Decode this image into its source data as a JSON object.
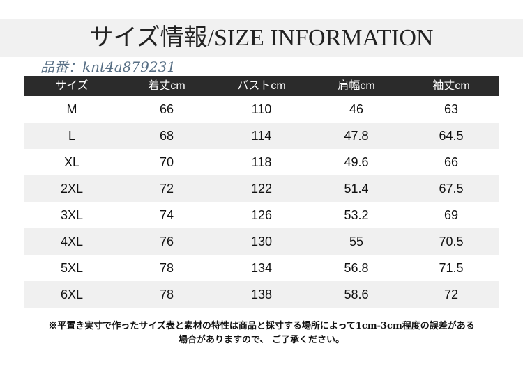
{
  "title": "サイズ情報/SIZE INFORMATION",
  "table": {
    "headers": [
      "サイズ",
      "着丈cm",
      "バストcm",
      "肩幅cm",
      "袖丈cm"
    ],
    "rows": [
      [
        "M",
        "66",
        "110",
        "46",
        "63"
      ],
      [
        "L",
        "68",
        "114",
        "47.8",
        "64.5"
      ],
      [
        "XL",
        "70",
        "118",
        "49.6",
        "66"
      ],
      [
        "2XL",
        "72",
        "122",
        "51.4",
        "67.5"
      ],
      [
        "3XL",
        "74",
        "126",
        "53.2",
        "69"
      ],
      [
        "4XL",
        "76",
        "130",
        "55",
        "70.5"
      ],
      [
        "5XL",
        "78",
        "134",
        "56.8",
        "71.5"
      ],
      [
        "6XL",
        "78",
        "138",
        "58.6",
        "72"
      ]
    ]
  },
  "watermark": {
    "label": "品番：",
    "code": "knt4a879231"
  },
  "note": {
    "line1": "※平置き実寸で作ったサイズ表と素材の特性は商品と採寸する場所によって1cm-3cm程度の誤差がある",
    "line2": "場合がありますので、 ご了承ください。"
  }
}
